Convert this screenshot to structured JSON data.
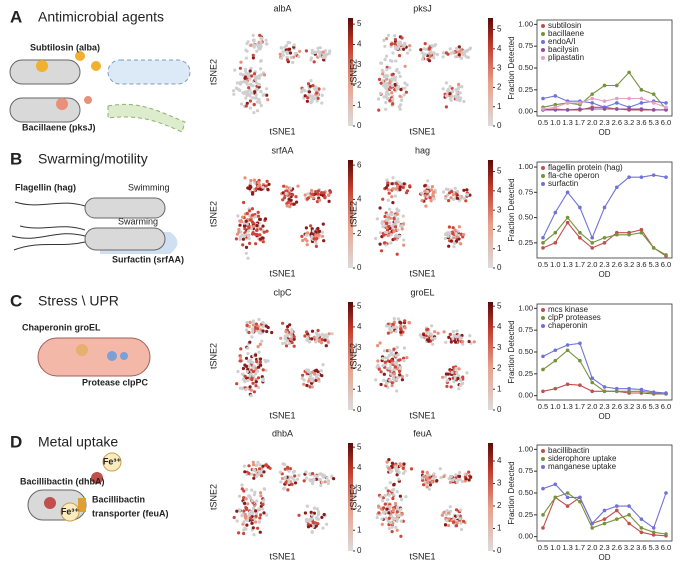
{
  "panels": [
    {
      "letter": "A",
      "title": "Antimicrobial agents",
      "diagram": [
        "Subtilosin (alba)",
        "Bacillaene (pksJ)"
      ],
      "tsne": [
        {
          "title": "albA",
          "xlabel": "tSNE1",
          "ylabel": "tSNE2",
          "colorbar": {
            "lim": [
              0,
              5.3
            ],
            "ticks": [
              0,
              1,
              2,
              3,
              4,
              5
            ]
          }
        },
        {
          "title": "pksJ",
          "xlabel": "tSNE1",
          "ylabel": "tSNE2",
          "colorbar": {
            "lim": [
              0,
              5.6
            ],
            "ticks": [
              0,
              1,
              2,
              3,
              4,
              5
            ]
          }
        }
      ]
    },
    {
      "letter": "B",
      "title": "Swarming/motility",
      "diagram": [
        "Flagellin (hag)",
        "Swimming",
        "Swarming",
        "Surfactin (srfAA)"
      ],
      "tsne": [
        {
          "title": "srfAA",
          "xlabel": "tSNE1",
          "ylabel": "tSNE2",
          "colorbar": {
            "lim": [
              0,
              6.3
            ],
            "ticks": [
              0,
              2,
              4,
              6
            ]
          }
        },
        {
          "title": "hag",
          "xlabel": "tSNE1",
          "ylabel": "tSNE2",
          "colorbar": {
            "lim": [
              0,
              5.6
            ],
            "ticks": [
              0,
              1,
              2,
              3,
              4,
              5
            ]
          }
        }
      ]
    },
    {
      "letter": "C",
      "title": "Stress \\ UPR",
      "diagram": [
        "Chaperonin groEL",
        "Protease clpPC"
      ],
      "tsne": [
        {
          "title": "clpC",
          "xlabel": "tSNE1",
          "ylabel": "tSNE2",
          "colorbar": {
            "lim": [
              0,
              5.2
            ],
            "ticks": [
              0,
              1,
              2,
              3,
              4,
              5
            ]
          }
        },
        {
          "title": "groEL",
          "xlabel": "tSNE1",
          "ylabel": "tSNE2",
          "colorbar": {
            "lim": [
              0,
              5.2
            ],
            "ticks": [
              0,
              1,
              2,
              3,
              4,
              5
            ]
          }
        }
      ]
    },
    {
      "letter": "D",
      "title": "Metal uptake",
      "diagram": [
        "Bacillibactin (dhbA)",
        "Fe³⁺",
        "Fe³⁺",
        "Bacillibactin",
        "transporter (feuA)"
      ],
      "tsne": [
        {
          "title": "dhbA",
          "xlabel": "tSNE1",
          "ylabel": "tSNE2",
          "colorbar": {
            "lim": [
              0,
              5.2
            ],
            "ticks": [
              0,
              1,
              2,
              3,
              4,
              5
            ]
          }
        },
        {
          "title": "feuA",
          "xlabel": "tSNE1",
          "ylabel": "tSNE2",
          "colorbar": {
            "lim": [
              0,
              4.8
            ],
            "ticks": [
              0,
              1,
              2,
              3,
              4
            ]
          }
        }
      ]
    }
  ],
  "chart_data": [
    {
      "type": "line",
      "x_label": "OD",
      "y_label": "Fraction Detected",
      "categories": [
        "0.5",
        "1.0",
        "1.3",
        "1.7",
        "2.0",
        "2.3",
        "2.6",
        "3.2",
        "3.6",
        "5.3",
        "6.0"
      ],
      "ylim": [
        -0.05,
        1.05
      ],
      "yticks": [
        {
          "value": 0,
          "label": "0.00"
        },
        {
          "value": 0.25,
          "label": "0.25"
        },
        {
          "value": 0.5,
          "label": "0.50"
        },
        {
          "value": 0.75,
          "label": "0.75"
        },
        {
          "value": 1,
          "label": "1.00"
        }
      ],
      "legend": "upper-left",
      "series": [
        {
          "name": "subtilosin",
          "color": "#c0504d",
          "values": [
            0.02,
            0.03,
            0.02,
            0.02,
            0.05,
            0.05,
            0.03,
            0.02,
            0.02,
            0.02,
            0.02
          ]
        },
        {
          "name": "bacillaene",
          "color": "#76923c",
          "values": [
            0.05,
            0.08,
            0.1,
            0.08,
            0.2,
            0.3,
            0.3,
            0.45,
            0.25,
            0.2,
            0.03
          ]
        },
        {
          "name": "endoA/I",
          "color": "#6f72d8",
          "values": [
            0.15,
            0.18,
            0.12,
            0.12,
            0.1,
            0.05,
            0.1,
            0.05,
            0.1,
            0.12,
            0.1
          ]
        },
        {
          "name": "bacilysin",
          "color": "#8e4fa0",
          "values": [
            0.02,
            0.02,
            0.02,
            0.03,
            0.03,
            0.03,
            0.03,
            0.03,
            0.03,
            0.02,
            0.02
          ]
        },
        {
          "name": "plipastatin",
          "color": "#e6a0c4",
          "values": [
            0.03,
            0.05,
            0.1,
            0.1,
            0.15,
            0.12,
            0.15,
            0.15,
            0.15,
            0.1,
            0.05
          ]
        }
      ]
    },
    {
      "type": "line",
      "x_label": "OD",
      "y_label": "Fraction Detected",
      "categories": [
        "0.5",
        "1.0",
        "1.3",
        "1.7",
        "2.0",
        "2.3",
        "2.6",
        "3.2",
        "3.6",
        "5.3",
        "6.0"
      ],
      "ylim": [
        0.1,
        1.05
      ],
      "yticks": [
        {
          "value": 0.25,
          "label": "0.25"
        },
        {
          "value": 0.5,
          "label": "0.50"
        },
        {
          "value": 0.75,
          "label": "0.75"
        },
        {
          "value": 1,
          "label": "1.00"
        }
      ],
      "legend": "upper-left",
      "series": [
        {
          "name": "flagellin protein (hag)",
          "color": "#c0504d",
          "values": [
            0.2,
            0.25,
            0.45,
            0.3,
            0.2,
            0.25,
            0.35,
            0.35,
            0.38,
            0.2,
            0.12
          ]
        },
        {
          "name": "fla-che operon",
          "color": "#76923c",
          "values": [
            0.25,
            0.35,
            0.5,
            0.35,
            0.25,
            0.3,
            0.33,
            0.33,
            0.35,
            0.2,
            0.13
          ]
        },
        {
          "name": "surfactin",
          "color": "#6f72d8",
          "values": [
            0.3,
            0.55,
            0.75,
            0.6,
            0.3,
            0.6,
            0.8,
            0.9,
            0.9,
            0.92,
            0.9
          ]
        }
      ]
    },
    {
      "type": "line",
      "x_label": "OD",
      "y_label": "Fraction Detected",
      "categories": [
        "0.5",
        "1.0",
        "1.3",
        "1.7",
        "2.0",
        "2.3",
        "2.6",
        "3.2",
        "3.6",
        "5.3",
        "6.0"
      ],
      "ylim": [
        -0.05,
        1.05
      ],
      "yticks": [
        {
          "value": 0,
          "label": "0.00"
        },
        {
          "value": 0.25,
          "label": "0.25"
        },
        {
          "value": 0.5,
          "label": "0.50"
        },
        {
          "value": 0.75,
          "label": "0.75"
        },
        {
          "value": 1,
          "label": "1.00"
        }
      ],
      "legend": "upper-left",
      "series": [
        {
          "name": "mcs kinase",
          "color": "#c0504d",
          "values": [
            0.05,
            0.08,
            0.13,
            0.12,
            0.05,
            0.05,
            0.05,
            0.03,
            0.03,
            0.02,
            0.02
          ]
        },
        {
          "name": "clpP proteases",
          "color": "#76923c",
          "values": [
            0.3,
            0.4,
            0.52,
            0.4,
            0.15,
            0.05,
            0.05,
            0.05,
            0.05,
            0.03,
            0.02
          ]
        },
        {
          "name": "chaperonin",
          "color": "#6f72d8",
          "values": [
            0.45,
            0.52,
            0.58,
            0.6,
            0.2,
            0.1,
            0.08,
            0.08,
            0.07,
            0.04,
            0.03
          ]
        }
      ]
    },
    {
      "type": "line",
      "x_label": "OD",
      "y_label": "Fraction Detected",
      "categories": [
        "0.5",
        "1.0",
        "1.3",
        "1.7",
        "2.0",
        "2.3",
        "2.6",
        "3.2",
        "3.6",
        "5.3",
        "6.0"
      ],
      "ylim": [
        -0.05,
        1.05
      ],
      "yticks": [
        {
          "value": 0,
          "label": "0.00"
        },
        {
          "value": 0.25,
          "label": "0.25"
        },
        {
          "value": 0.5,
          "label": "0.50"
        },
        {
          "value": 0.75,
          "label": "0.75"
        },
        {
          "value": 1,
          "label": "1.00"
        }
      ],
      "legend": "upper-left",
      "series": [
        {
          "name": "bacillibactin",
          "color": "#c0504d",
          "values": [
            0.1,
            0.45,
            0.35,
            0.45,
            0.15,
            0.2,
            0.3,
            0.15,
            0.05,
            0.02,
            0.01
          ]
        },
        {
          "name": "siderophore uptake",
          "color": "#76923c",
          "values": [
            0.25,
            0.45,
            0.5,
            0.4,
            0.1,
            0.15,
            0.2,
            0.25,
            0.1,
            0.05,
            0.03
          ]
        },
        {
          "name": "manganese uptake",
          "color": "#6f72d8",
          "values": [
            0.55,
            0.6,
            0.45,
            0.45,
            0.15,
            0.3,
            0.35,
            0.35,
            0.2,
            0.1,
            0.5
          ]
        }
      ]
    }
  ]
}
